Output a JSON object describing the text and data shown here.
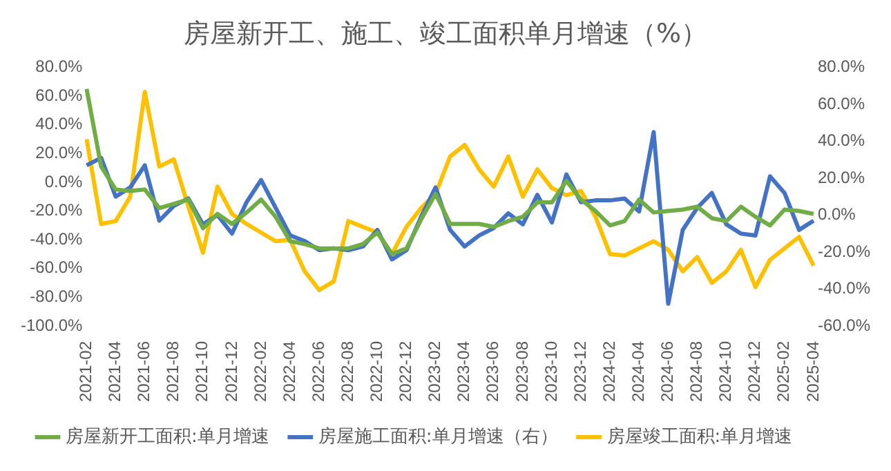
{
  "chart_data": {
    "type": "line",
    "title": "房屋新开工、施工、竣工面积单月增速（%）",
    "categories": [
      "2021-02",
      null,
      "2021-04",
      null,
      "2021-06",
      null,
      "2021-08",
      null,
      "2021-10",
      null,
      "2021-12",
      null,
      "2022-02",
      null,
      "2022-04",
      null,
      "2022-06",
      null,
      "2022-08",
      null,
      "2022-10",
      null,
      "2022-12",
      null,
      "2023-02",
      null,
      "2023-04",
      null,
      "2023-06",
      null,
      "2023-08",
      null,
      "2023-10",
      null,
      "2023-12",
      null,
      "2024-02",
      null,
      "2024-04",
      null,
      "2024-06",
      null,
      "2024-08",
      null,
      "2024-10",
      null,
      "2024-12",
      null,
      "2025-02",
      null,
      "2025-04"
    ],
    "series": [
      {
        "name": "房屋新开工面积:单月增速",
        "color": "#70ad47",
        "values": [
          65,
          11,
          -5,
          -6,
          -5,
          -18,
          -15,
          -12,
          -32,
          -22,
          -29,
          -21,
          -12,
          -24,
          -41,
          -43,
          -46,
          -46,
          -46,
          -43,
          -35,
          -50,
          -46,
          -26,
          -8,
          -29,
          -29,
          -29,
          -31,
          -27,
          -24,
          -14,
          -14,
          1,
          -12,
          -20,
          -30,
          -27,
          -12,
          -21,
          -20,
          -19,
          -17,
          -25,
          -27,
          -17,
          -24,
          -30,
          -19,
          -20,
          -22
        ]
      },
      {
        "name": "房屋施工面积:单月增速（右）",
        "color": "#4472c4",
        "axis": "y2",
        "values": [
          27,
          31,
          10,
          15,
          27,
          -3,
          5,
          9,
          -5,
          0,
          -10,
          7,
          19,
          4,
          -11,
          -14,
          -19,
          -18,
          -19,
          -17,
          -8,
          -24,
          -19,
          -1,
          15,
          -8,
          -17,
          -11,
          -7,
          1,
          -5,
          11,
          -4,
          22,
          7,
          8,
          8,
          9,
          2,
          45,
          -48,
          -8,
          4,
          12,
          -5,
          -10,
          -11,
          21,
          12,
          -8,
          -3
        ]
      },
      {
        "name": "房屋竣工面积:单月增速",
        "color": "#ffc000",
        "values": [
          30,
          -29,
          -27,
          -10,
          63,
          11,
          16,
          -17,
          -49,
          -3,
          -22,
          -29,
          -35,
          -41,
          -40,
          -62,
          -75,
          -69,
          -27,
          -31,
          -35,
          -50,
          -31,
          -18,
          -8,
          18,
          26,
          9,
          -3,
          18,
          -10,
          9,
          -4,
          -9,
          -6,
          -24,
          -50,
          -51,
          -46,
          -41,
          -47,
          -62,
          -52,
          -70,
          -62,
          -47,
          -73,
          -54,
          -46,
          -38,
          -58
        ]
      }
    ],
    "ylim": [
      -100,
      80
    ],
    "yticks": [
      {
        "value": -100,
        "label": "-100.0%"
      },
      {
        "value": -80,
        "label": "-80.0%"
      },
      {
        "value": -60,
        "label": "-60.0%"
      },
      {
        "value": -40,
        "label": "-40.0%"
      },
      {
        "value": -20,
        "label": "-20.0%"
      },
      {
        "value": 0,
        "label": "0.0%"
      },
      {
        "value": 20,
        "label": "20.0%"
      },
      {
        "value": 40,
        "label": "40.0%"
      },
      {
        "value": 60,
        "label": "60.0%"
      },
      {
        "value": 80,
        "label": "80.0%"
      }
    ],
    "y2lim": [
      -60,
      80
    ],
    "y2ticks": [
      {
        "value": -60,
        "label": "-60.0%"
      },
      {
        "value": -40,
        "label": "-40.0%"
      },
      {
        "value": -20,
        "label": "-20.0%"
      },
      {
        "value": 0,
        "label": "0.0%"
      },
      {
        "value": 20,
        "label": "20.0%"
      },
      {
        "value": 40,
        "label": "40.0%"
      },
      {
        "value": 60,
        "label": "60.0%"
      },
      {
        "value": 80,
        "label": "80.0%"
      }
    ],
    "grid": false,
    "legend": "bottom",
    "marker": "none",
    "line_style": "solid"
  }
}
